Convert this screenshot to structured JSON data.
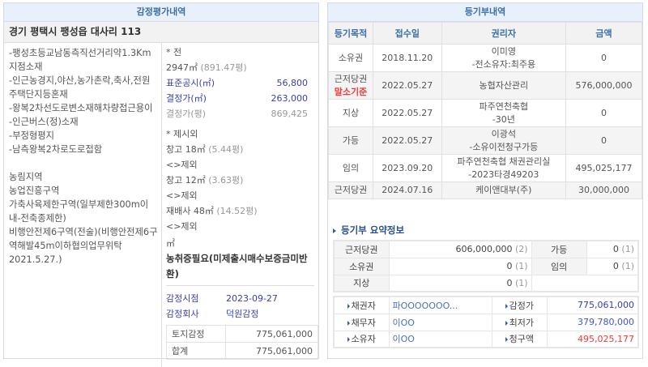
{
  "appraisal": {
    "title": "감정평가내역",
    "address": "경기 평택시 팽성읍 대사리 113",
    "location_lines": [
      "-팽성초등교남동측직선거리약1.3Km지점소재",
      "-인근농경지,야산,농가촌락,축사,전원주택단지등혼재",
      "-왕복2차선도로변소재해차량접근용이",
      "-인근버스(정)소재",
      "-부정형평지",
      "-남측왕복2차로도로접함"
    ],
    "zoning_lines": [
      "농림지역",
      "농업진흥구역",
      "가축사육제한구역(일부제한300m이내-전축종제한)",
      "비행안전제6구역(전술)(비행안전제6구역해발45m이하협의업무위탁2021.5.27.)"
    ],
    "land_type": "* 전",
    "land_area": "2947㎡",
    "land_pyeong": "(891.47평)",
    "std_price_label": "표준공시(㎡)",
    "std_price": "56,800",
    "decided_label": "결정가(㎡)",
    "decided": "263,000",
    "decided_py_label": "결정가(평)",
    "decided_py": "869,425",
    "excluded_title": "* 제시외",
    "excluded": [
      {
        "name": "창고 18㎡",
        "pyeong": "(5.44평)",
        "note": "<>제외"
      },
      {
        "name": "창고 12㎡",
        "pyeong": "(3.63평)",
        "note": "<>제외"
      },
      {
        "name": "재배사 48㎡",
        "pyeong": "(14.52평)",
        "note": "<>제외"
      }
    ],
    "unit": "㎡",
    "notice": "농취증필요(미제출시매수보증금미반환)",
    "date_label": "감정시점",
    "date": "2023-09-27",
    "company_label": "감정회사",
    "company": "덕원감정",
    "totals": [
      {
        "label": "토지감정",
        "value": "775,061,000"
      },
      {
        "label": "합계",
        "value": "775,061,000"
      }
    ]
  },
  "registry": {
    "title": "등기부내역",
    "columns": [
      "등기목적",
      "접수일",
      "권리자",
      "금액"
    ],
    "rows": [
      {
        "purpose": "소유권",
        "date": "2018.11.20",
        "holder": "이미영",
        "holder2": "-전소유자:최주용",
        "amount": "0"
      },
      {
        "purpose": "근저당권",
        "badge": "말소기준",
        "date": "2022.05.27",
        "holder": "농협자산관리",
        "amount": "576,000,000"
      },
      {
        "purpose": "지상",
        "date": "2022.05.27",
        "holder": "파주연천축협",
        "holder2": "-30년",
        "amount": "0"
      },
      {
        "purpose": "가등",
        "date": "2022.05.27",
        "holder": "이광석",
        "holder2": "-소유이전청구가등",
        "amount": "0"
      },
      {
        "purpose": "임의",
        "date": "2023.09.20",
        "holder": "파주연천축협 채권관리실",
        "holder2": "-2023타경49203",
        "amount": "495,025,177"
      },
      {
        "purpose": "근저당권",
        "date": "2024.07.16",
        "holder": "케이앤대부(주)",
        "amount": "30,000,000"
      }
    ],
    "colors": {
      "highlight": "#f03c3c",
      "amount_blue": "#4450e0"
    }
  },
  "summary": {
    "title": "등기부 요약정보",
    "rows": [
      [
        {
          "label": "근저당권",
          "value": "606,000,000",
          "count": "(2)"
        },
        {
          "label": "가등",
          "value": "0",
          "count": "(1)"
        }
      ],
      [
        {
          "label": "소유권",
          "value": "0",
          "count": "(1)"
        },
        {
          "label": "임의",
          "value": "0",
          "count": "(1)"
        }
      ],
      [
        {
          "label": "지상",
          "value": "0",
          "count": "(1)"
        }
      ]
    ],
    "parties": [
      {
        "label": "채권자",
        "value": "파OOOOOOO...",
        "label2": "감정가",
        "value2": "775,061,000"
      },
      {
        "label": "채무자",
        "value": "이OO",
        "label2": "최저가",
        "value2": "379,780,000"
      },
      {
        "label": "소유자",
        "value": "이OO",
        "label2": "청구액",
        "value2": "495,025,177"
      }
    ]
  }
}
